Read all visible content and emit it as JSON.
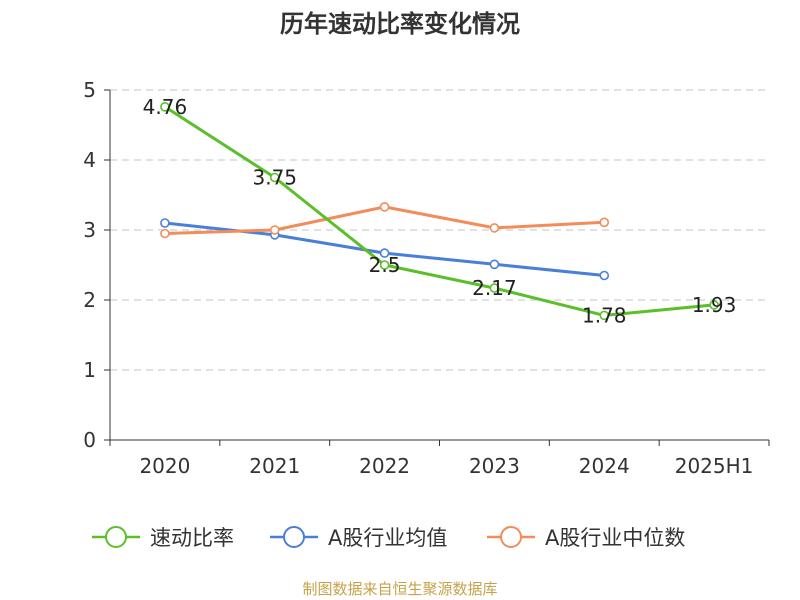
{
  "chart_data": {
    "type": "line",
    "title": "历年速动比率变化情况",
    "categories": [
      "2020",
      "2021",
      "2022",
      "2023",
      "2024",
      "2025H1"
    ],
    "y_ticks": [
      "0",
      "1",
      "2",
      "3",
      "4",
      "5"
    ],
    "ylim": [
      0,
      5
    ],
    "grid": true,
    "legend_position": "bottom",
    "series": [
      {
        "name": "速动比率",
        "color": "#5bbf2a",
        "values": [
          4.76,
          3.75,
          2.5,
          2.17,
          1.78,
          1.93
        ],
        "labels": [
          "4.76",
          "3.75",
          "2.5",
          "2.17",
          "1.78",
          "1.93"
        ]
      },
      {
        "name": "A股行业均值",
        "color": "#4a7fd9",
        "values": [
          3.1,
          2.93,
          2.67,
          2.51,
          2.35,
          null
        ]
      },
      {
        "name": "A股行业中位数",
        "color": "#f28c5a",
        "values": [
          2.95,
          3.0,
          3.33,
          3.03,
          3.11,
          null
        ]
      }
    ]
  },
  "source_text": "制图数据来自恒生聚源数据库"
}
